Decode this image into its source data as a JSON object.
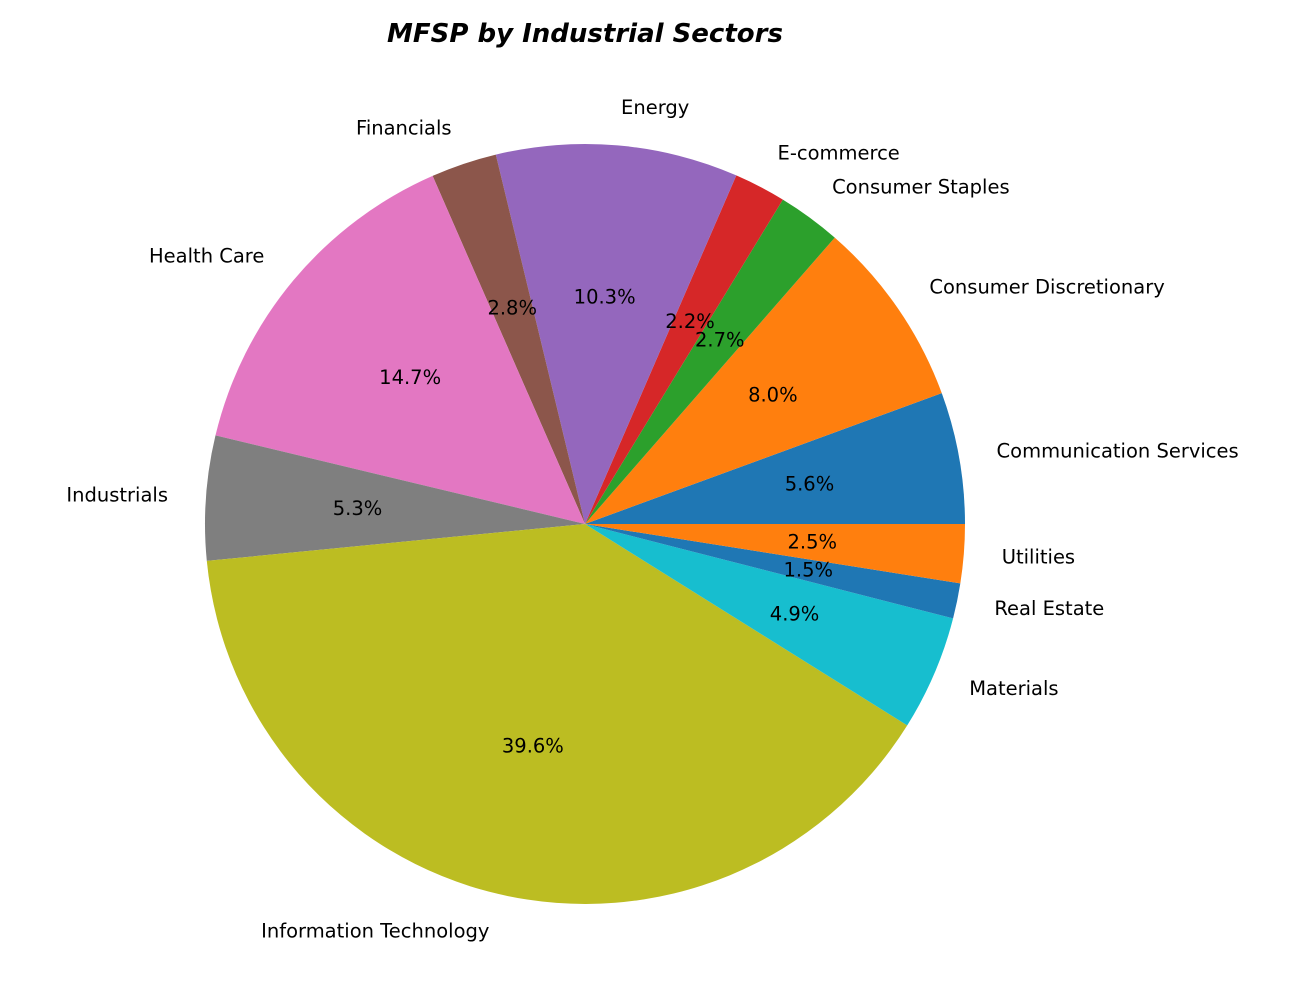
{
  "chart_data": {
    "type": "pie",
    "title": "MFSP by Industrial Sectors",
    "start_angle_deg": 0,
    "direction": "counterclockwise",
    "slices": [
      {
        "label": "Communication Services",
        "value": 5.6,
        "pct_label": "5.6%",
        "color": "#1f77b4"
      },
      {
        "label": "Consumer Discretionary",
        "value": 8.0,
        "pct_label": "8.0%",
        "color": "#ff7f0e"
      },
      {
        "label": "Consumer Staples",
        "value": 2.7,
        "pct_label": "2.7%",
        "color": "#2ca02c"
      },
      {
        "label": "E-commerce",
        "value": 2.2,
        "pct_label": "2.2%",
        "color": "#d62728"
      },
      {
        "label": "Energy",
        "value": 10.3,
        "pct_label": "10.3%",
        "color": "#9467bd"
      },
      {
        "label": "Financials",
        "value": 2.8,
        "pct_label": "2.8%",
        "color": "#8c564b"
      },
      {
        "label": "Health Care",
        "value": 14.7,
        "pct_label": "14.7%",
        "color": "#e377c2"
      },
      {
        "label": "Industrials",
        "value": 5.3,
        "pct_label": "5.3%",
        "color": "#7f7f7f"
      },
      {
        "label": "Information Technology",
        "value": 39.6,
        "pct_label": "39.6%",
        "color": "#bcbd22"
      },
      {
        "label": "Materials",
        "value": 4.9,
        "pct_label": "4.9%",
        "color": "#17becf"
      },
      {
        "label": "Real Estate",
        "value": 1.5,
        "pct_label": "1.5%",
        "color": "#1f77b4"
      },
      {
        "label": "Utilities",
        "value": 2.5,
        "pct_label": "2.5%",
        "color": "#ff7f0e"
      }
    ]
  }
}
